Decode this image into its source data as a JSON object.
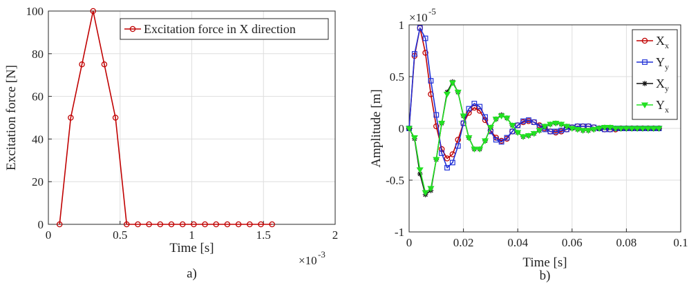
{
  "chart_data": [
    {
      "type": "line",
      "caption": "a)",
      "xlabel": "Time [s]",
      "ylabel": "Excitation force [N]",
      "x_multiplier_label": "×10",
      "x_multiplier_exp": "-3",
      "xlim": [
        0,
        2
      ],
      "ylim": [
        0,
        100
      ],
      "xticks": [
        0,
        0.5,
        1,
        1.5,
        2
      ],
      "xtick_labels": [
        "0",
        "0.5",
        "1",
        "1.5",
        "2"
      ],
      "yticks": [
        0,
        20,
        40,
        60,
        80,
        100
      ],
      "ytick_labels": [
        "0",
        "20",
        "40",
        "60",
        "80",
        "100"
      ],
      "grid": true,
      "legend_position": "top-right",
      "series": [
        {
          "name": "Excitation force in X direction",
          "color": "#c00000",
          "marker": "circle",
          "x": [
            0.078,
            0.156,
            0.234,
            0.312,
            0.39,
            0.468,
            0.546,
            0.624,
            0.702,
            0.78,
            0.858,
            0.936,
            1.014,
            1.092,
            1.17,
            1.248,
            1.326,
            1.404,
            1.482,
            1.56
          ],
          "y": [
            0,
            50,
            75,
            100,
            75,
            50,
            0,
            0,
            0,
            0,
            0,
            0,
            0,
            0,
            0,
            0,
            0,
            0,
            0,
            0
          ]
        }
      ]
    },
    {
      "type": "line",
      "caption": "b)",
      "xlabel": "Time [s]",
      "ylabel": "Amplitude [m]",
      "y_multiplier_label": "×10",
      "y_multiplier_exp": "-5",
      "xlim": [
        0,
        0.1
      ],
      "ylim": [
        -1,
        1
      ],
      "xticks": [
        0,
        0.02,
        0.04,
        0.06,
        0.08,
        0.1
      ],
      "xtick_labels": [
        "0",
        "0.02",
        "0.04",
        "0.06",
        "0.08",
        "0.1"
      ],
      "yticks": [
        -1,
        -0.5,
        0,
        0.5,
        1
      ],
      "ytick_labels": [
        "-1",
        "-0.5",
        "0",
        "0.5",
        "1"
      ],
      "grid": true,
      "legend_position": "top-right",
      "series": [
        {
          "name": "X",
          "subscript": "x",
          "color": "#c00000",
          "marker": "circle",
          "x": [
            0,
            0.002,
            0.004,
            0.006,
            0.008,
            0.01,
            0.012,
            0.014,
            0.016,
            0.018,
            0.02,
            0.022,
            0.024,
            0.026,
            0.028,
            0.03,
            0.032,
            0.034,
            0.036,
            0.038,
            0.04,
            0.042,
            0.044,
            0.046,
            0.048,
            0.05,
            0.052,
            0.054,
            0.056,
            0.058,
            0.06,
            0.062,
            0.064,
            0.066,
            0.068,
            0.07,
            0.072,
            0.074,
            0.076,
            0.078,
            0.08,
            0.082,
            0.084,
            0.086,
            0.088,
            0.09,
            0.092
          ],
          "y": [
            0,
            0.7,
            0.97,
            0.73,
            0.33,
            0.02,
            -0.2,
            -0.29,
            -0.25,
            -0.11,
            0.05,
            0.15,
            0.2,
            0.17,
            0.08,
            -0.02,
            -0.09,
            -0.12,
            -0.1,
            -0.03,
            0.03,
            0.06,
            0.07,
            0.06,
            0.03,
            0,
            -0.03,
            -0.04,
            -0.03,
            -0.01,
            0.01,
            0.02,
            0.02,
            0.02,
            0.01,
            0,
            -0.01,
            -0.01,
            -0.01,
            0,
            0,
            0,
            0,
            0,
            0,
            0,
            0
          ]
        },
        {
          "name": "Y",
          "subscript": "y",
          "color": "#1f2fd6",
          "marker": "square",
          "x": [
            0,
            0.002,
            0.004,
            0.006,
            0.008,
            0.01,
            0.012,
            0.014,
            0.016,
            0.018,
            0.02,
            0.022,
            0.024,
            0.026,
            0.028,
            0.03,
            0.032,
            0.034,
            0.036,
            0.038,
            0.04,
            0.042,
            0.044,
            0.046,
            0.048,
            0.05,
            0.052,
            0.054,
            0.056,
            0.058,
            0.06,
            0.062,
            0.064,
            0.066,
            0.068,
            0.07,
            0.072,
            0.074,
            0.076,
            0.078,
            0.08,
            0.082,
            0.084,
            0.086,
            0.088,
            0.09,
            0.092
          ],
          "y": [
            0,
            0.72,
            0.97,
            0.87,
            0.46,
            0.13,
            -0.24,
            -0.38,
            -0.33,
            -0.17,
            0.05,
            0.19,
            0.24,
            0.21,
            0.11,
            -0.03,
            -0.11,
            -0.13,
            -0.09,
            -0.03,
            0.03,
            0.07,
            0.08,
            0.06,
            0.02,
            -0.01,
            -0.03,
            -0.03,
            -0.02,
            -0.01,
            0.01,
            0.02,
            0.02,
            0.02,
            0.01,
            0,
            -0.01,
            -0.01,
            0,
            0,
            0,
            0,
            0,
            0,
            0,
            0,
            0
          ]
        },
        {
          "name": "X",
          "subscript": "y",
          "color": "#111111",
          "marker": "star",
          "x": [
            0,
            0.002,
            0.004,
            0.006,
            0.008,
            0.01,
            0.012,
            0.014,
            0.016,
            0.018,
            0.02,
            0.022,
            0.024,
            0.026,
            0.028,
            0.03,
            0.032,
            0.034,
            0.036,
            0.038,
            0.04,
            0.042,
            0.044,
            0.046,
            0.048,
            0.05,
            0.052,
            0.054,
            0.056,
            0.058,
            0.06,
            0.062,
            0.064,
            0.066,
            0.068,
            0.07,
            0.072,
            0.074,
            0.076,
            0.078,
            0.08,
            0.082,
            0.084,
            0.086,
            0.088,
            0.09,
            0.092
          ],
          "y": [
            0,
            -0.1,
            -0.44,
            -0.64,
            -0.6,
            -0.3,
            0.05,
            0.35,
            0.45,
            0.35,
            0.12,
            -0.09,
            -0.2,
            -0.2,
            -0.12,
            0.01,
            0.09,
            0.13,
            0.1,
            0.03,
            -0.04,
            -0.08,
            -0.07,
            -0.05,
            -0.02,
            0.02,
            0.04,
            0.05,
            0.04,
            0.02,
            0,
            -0.01,
            -0.02,
            -0.02,
            -0.01,
            0,
            0.01,
            0.01,
            0,
            0,
            0,
            0,
            0,
            0,
            0,
            0,
            0
          ]
        },
        {
          "name": "Y",
          "subscript": "x",
          "color": "#22e022",
          "marker": "triangle-down",
          "x": [
            0,
            0.002,
            0.004,
            0.006,
            0.008,
            0.01,
            0.012,
            0.014,
            0.016,
            0.018,
            0.02,
            0.022,
            0.024,
            0.026,
            0.028,
            0.03,
            0.032,
            0.034,
            0.036,
            0.038,
            0.04,
            0.042,
            0.044,
            0.046,
            0.048,
            0.05,
            0.052,
            0.054,
            0.056,
            0.058,
            0.06,
            0.062,
            0.064,
            0.066,
            0.068,
            0.07,
            0.072,
            0.074,
            0.076,
            0.078,
            0.08,
            0.082,
            0.084,
            0.086,
            0.088,
            0.09,
            0.092
          ],
          "y": [
            0,
            -0.09,
            -0.4,
            -0.62,
            -0.58,
            -0.3,
            0.05,
            0.33,
            0.44,
            0.35,
            0.12,
            -0.09,
            -0.2,
            -0.2,
            -0.12,
            0.01,
            0.09,
            0.12,
            0.1,
            0.03,
            -0.04,
            -0.08,
            -0.07,
            -0.05,
            -0.02,
            0.02,
            0.04,
            0.05,
            0.04,
            0.02,
            0,
            -0.01,
            -0.02,
            -0.02,
            -0.01,
            0,
            0.01,
            0.01,
            0,
            0,
            0,
            0,
            0,
            0,
            0,
            0,
            0
          ]
        }
      ]
    }
  ]
}
